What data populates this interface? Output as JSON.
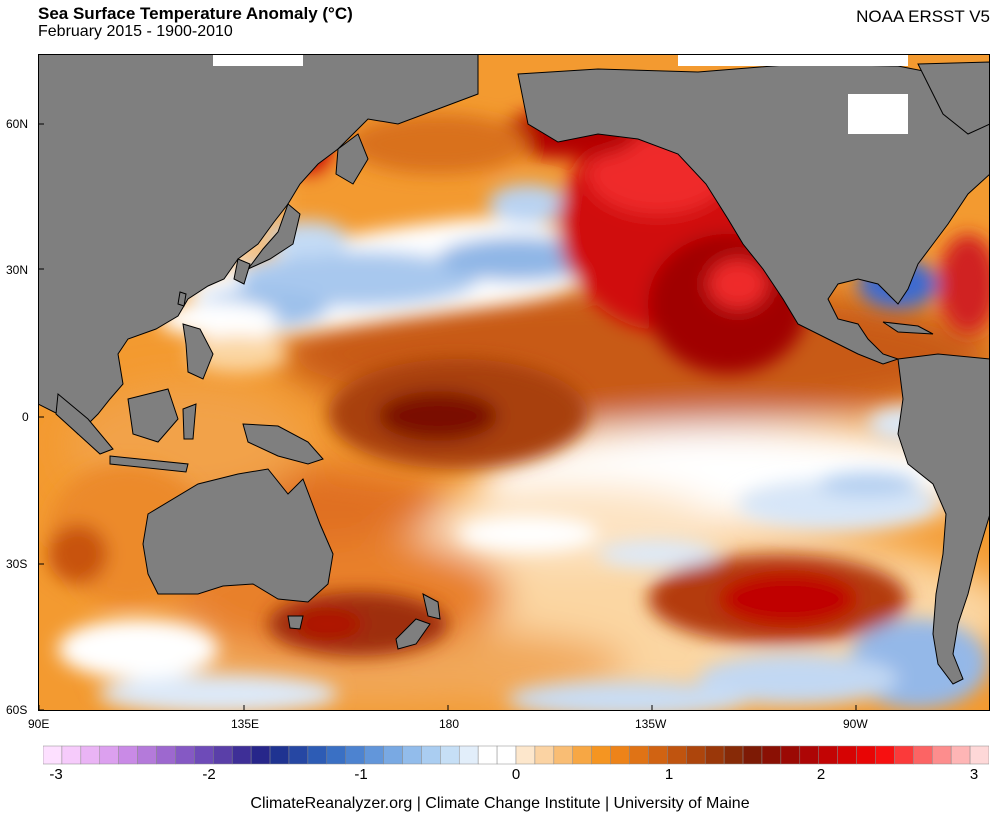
{
  "header": {
    "title": "Sea Surface Temperature Anomaly (°C)",
    "subtitle": "February 2015 - 1900-2010",
    "source": "NOAA ERSST V5"
  },
  "map": {
    "lat_labels": [
      "60N",
      "30N",
      "0",
      "30S",
      "60S"
    ],
    "lon_labels": [
      "90E",
      "135E",
      "180",
      "135W",
      "90W"
    ],
    "colors": {
      "land": "#7f7f7f",
      "coast": "#000000",
      "warm_strong": "#a30000",
      "warm": "#e05a00",
      "neutral": "#ffffff",
      "cool": "#8fb6e6"
    }
  },
  "colorbar": {
    "tick_labels": [
      "-3",
      "-2",
      "-1",
      "0",
      "1",
      "2",
      "3"
    ],
    "min": -3,
    "max": 3,
    "colors": [
      "#fde0ff",
      "#f6cbfb",
      "#eab4f5",
      "#dca0ef",
      "#c98ae6",
      "#b47ada",
      "#9d68cf",
      "#8559c4",
      "#6e4bb8",
      "#5a3fa8",
      "#3e2f97",
      "#27268a",
      "#1f3391",
      "#2647a3",
      "#2d5cb5",
      "#3a70c4",
      "#4d83d0",
      "#6296da",
      "#79a9e3",
      "#92bceb",
      "#aacdf1",
      "#c6dff6",
      "#e2eefa",
      "#ffffff",
      "#ffffff",
      "#fde7cc",
      "#fbd3a3",
      "#f9bd74",
      "#f7a744",
      "#f59521",
      "#ed8319",
      "#e07315",
      "#d16312",
      "#c0540f",
      "#ad450c",
      "#9a3709",
      "#872a07",
      "#7d1a05",
      "#8a1004",
      "#9b0904",
      "#ad0505",
      "#c20404",
      "#d60303",
      "#e80505",
      "#f71010",
      "#fb3a3a",
      "#fc6464",
      "#fd8d8d",
      "#feb5b5",
      "#fed8d8"
    ]
  },
  "footer": {
    "credit": "ClimateReanalyzer.org | Climate Change Institute | University of Maine"
  }
}
